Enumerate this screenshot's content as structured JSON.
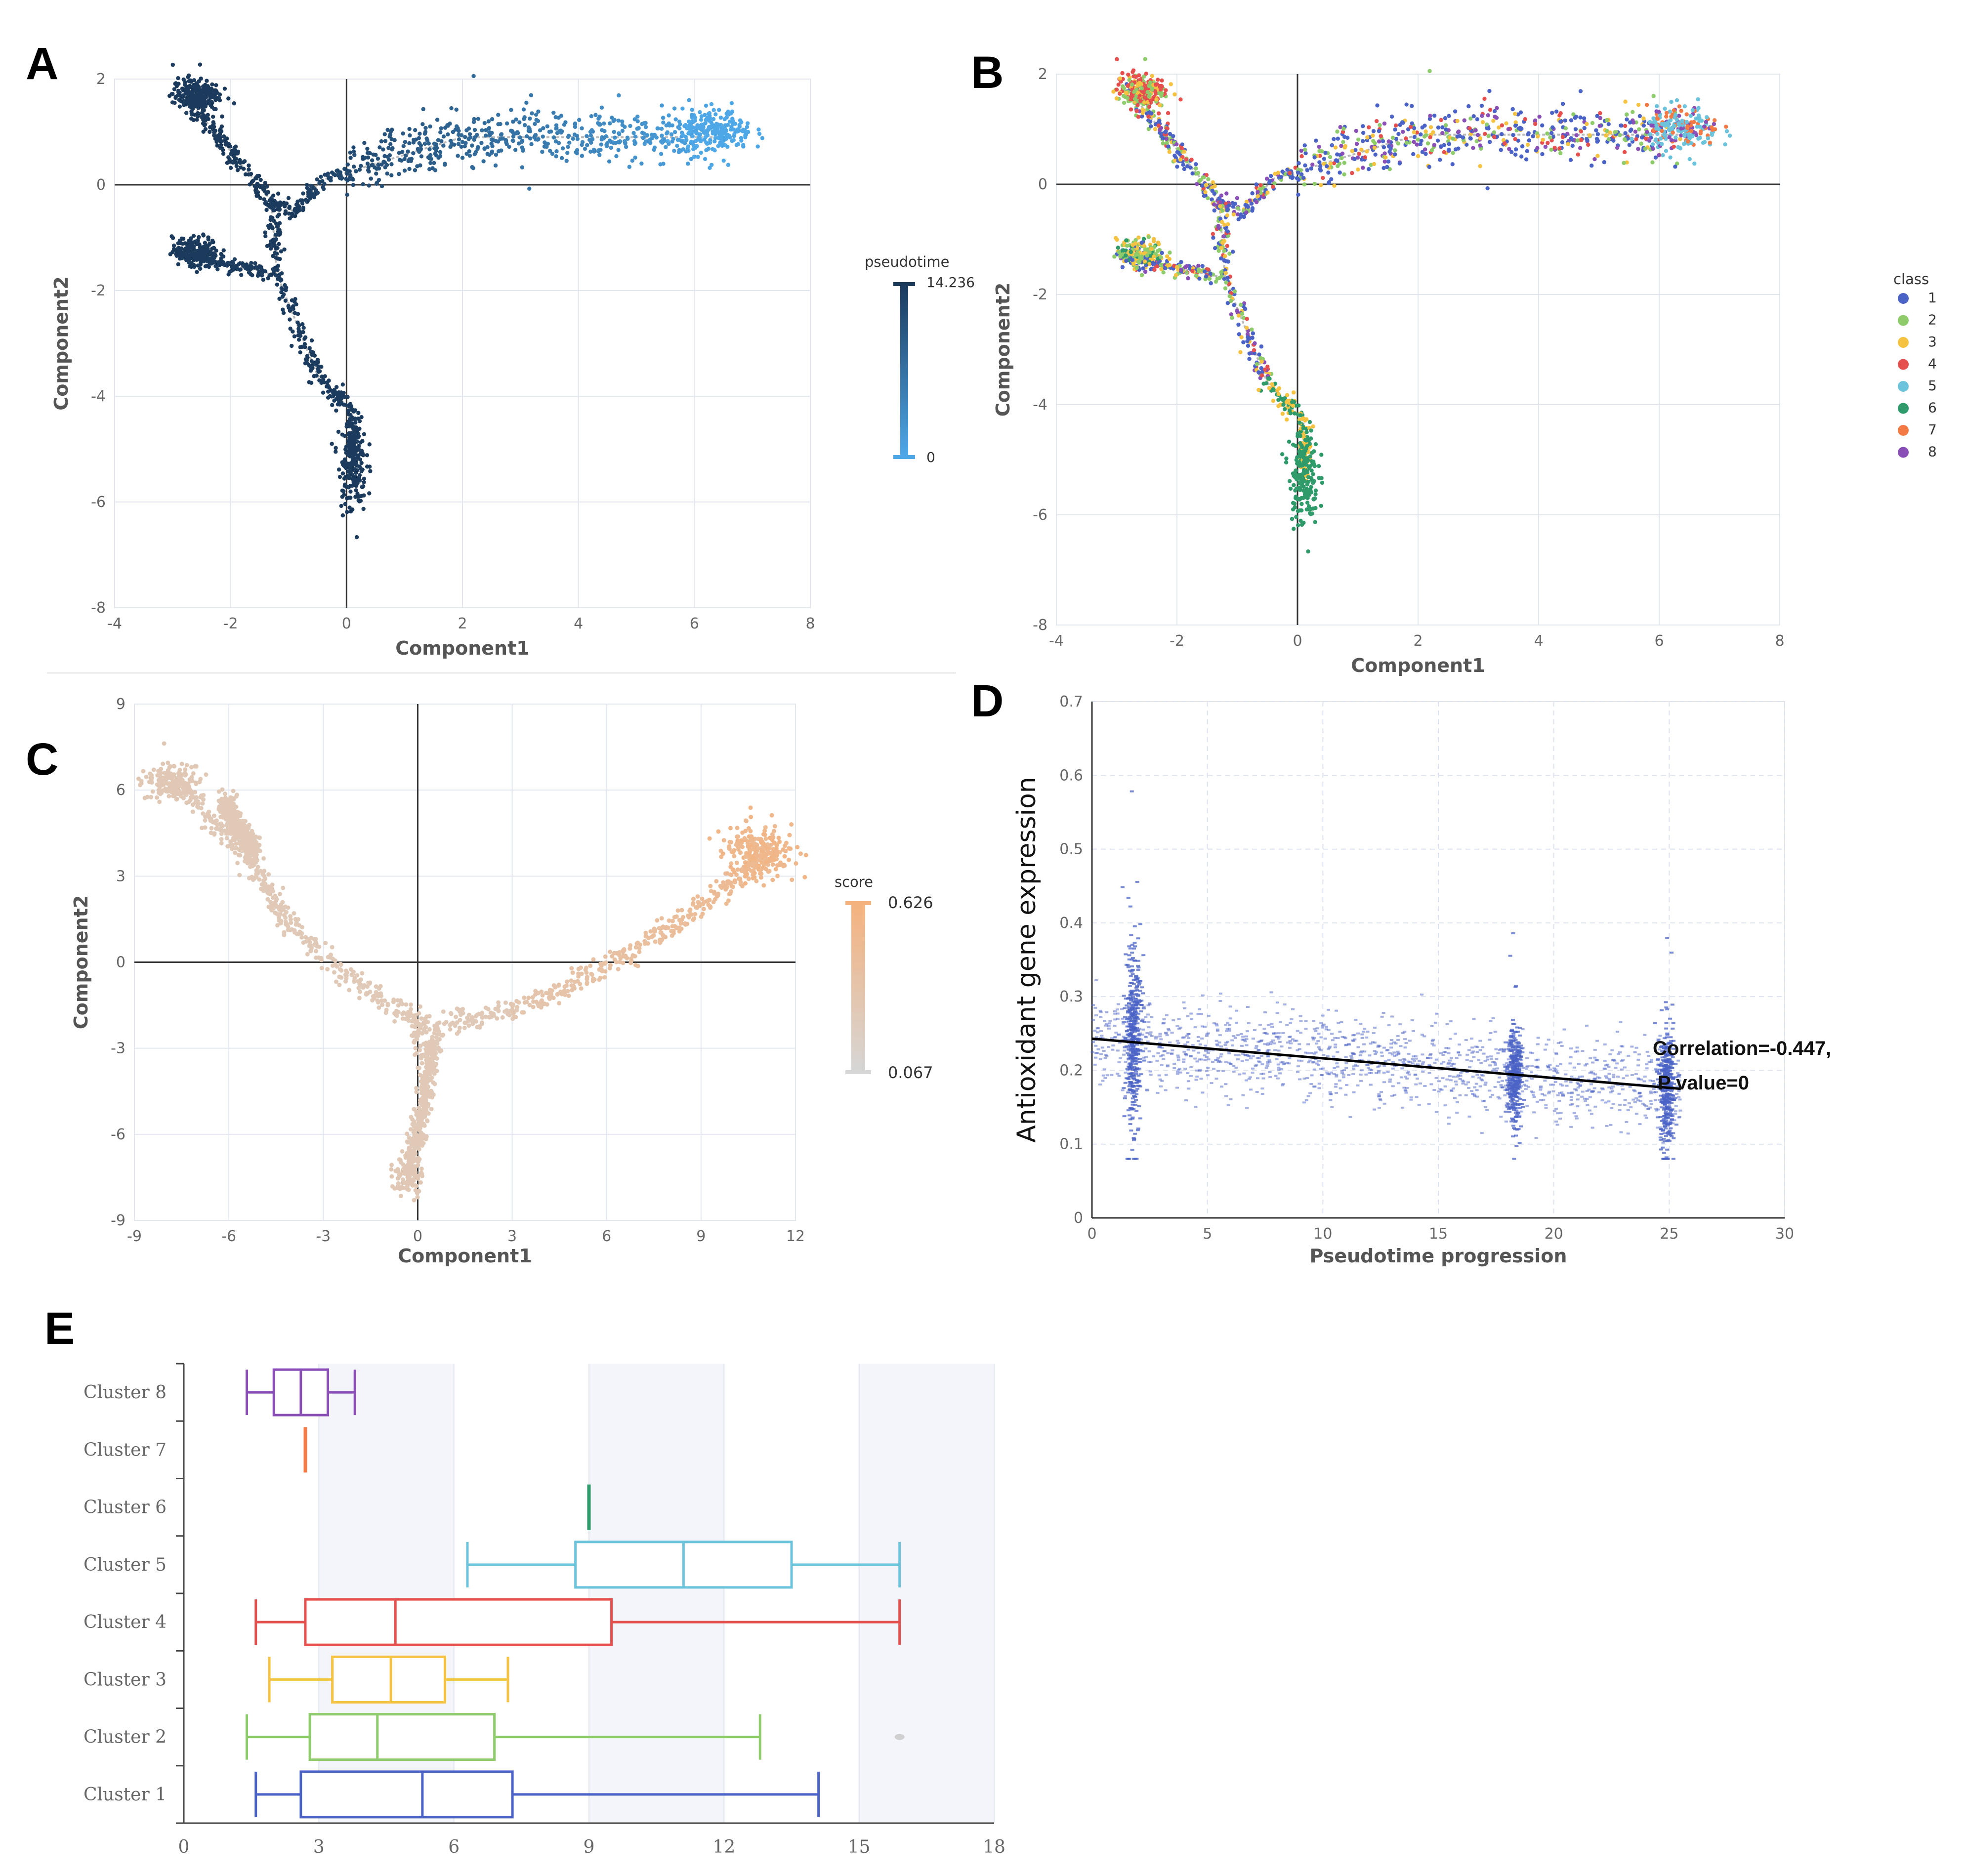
{
  "panels": {
    "A": {
      "label": "A"
    },
    "B": {
      "label": "B"
    },
    "C": {
      "label": "C"
    },
    "D": {
      "label": "D"
    },
    "E": {
      "label": "E"
    }
  },
  "chart_data": [
    {
      "id": "A",
      "type": "scatter",
      "title": "",
      "xlabel": "Component1",
      "ylabel": "Component2",
      "xlim": [
        -4,
        8
      ],
      "ylim": [
        -8,
        2
      ],
      "xticks": [
        -4,
        -2,
        0,
        2,
        4,
        6,
        8
      ],
      "yticks": [
        2,
        0,
        -2,
        -4,
        -6,
        -8
      ],
      "grid": true,
      "legend": {
        "type": "continuous",
        "title": "pseudotime",
        "max": "14.236",
        "min": "0",
        "color_max": "#1b3a5c",
        "color_min": "#4ea8e8",
        "position": "right"
      },
      "trajectory": [
        [
          -2.8,
          1.7
        ],
        [
          -1.3,
          -0.3
        ],
        [
          -0.9,
          -0.5
        ],
        [
          -0.4,
          0.1
        ],
        [
          2,
          0.9
        ],
        [
          6.5,
          0.9
        ]
      ],
      "branches": [
        {
          "path": [
            [
              -1.3,
              -0.3
            ],
            [
              -1.2,
              -1.7
            ],
            [
              -0.5,
              -3.6
            ]
          ]
        },
        {
          "path": [
            [
              -2.9,
              -1.3
            ],
            [
              -1.2,
              -1.7
            ]
          ]
        },
        {
          "path": [
            [
              -0.5,
              -3.6
            ],
            [
              0.1,
              -4.3
            ],
            [
              0.1,
              -5.3
            ]
          ]
        }
      ],
      "clusters": [
        {
          "center": [
            -2.6,
            1.7
          ],
          "spread": [
            0.2,
            0.16
          ],
          "n": 220,
          "t": 0.0
        },
        {
          "center": [
            -2.6,
            -1.25
          ],
          "spread": [
            0.2,
            0.13
          ],
          "n": 170,
          "t": 0.0
        },
        {
          "center": [
            0.1,
            -5.3
          ],
          "spread": [
            0.12,
            0.45
          ],
          "n": 160,
          "t": 0.0
        },
        {
          "center": [
            6.4,
            1.0
          ],
          "spread": [
            0.3,
            0.2
          ],
          "n": 220,
          "t": 1.0
        }
      ]
    },
    {
      "id": "B",
      "type": "scatter",
      "title": "",
      "xlabel": "Component1",
      "ylabel": "Component2",
      "xlim": [
        -4,
        8
      ],
      "ylim": [
        -8,
        2
      ],
      "xticks": [
        -4,
        -2,
        0,
        2,
        4,
        6,
        8
      ],
      "yticks": [
        2,
        0,
        -2,
        -4,
        -6,
        -8
      ],
      "grid": true,
      "legend": {
        "type": "categorical",
        "title": "class",
        "position": "right",
        "entries": [
          {
            "label": "1",
            "color": "#4b63c6"
          },
          {
            "label": "2",
            "color": "#8ecb6a"
          },
          {
            "label": "3",
            "color": "#f5c242"
          },
          {
            "label": "4",
            "color": "#e5504e"
          },
          {
            "label": "5",
            "color": "#6cc3dc"
          },
          {
            "label": "6",
            "color": "#2f9a6a"
          },
          {
            "label": "7",
            "color": "#f47a45"
          },
          {
            "label": "8",
            "color": "#8a4fb6"
          }
        ]
      }
    },
    {
      "id": "C",
      "type": "scatter",
      "title": "",
      "xlabel": "Component1",
      "ylabel": "Component2",
      "xlim": [
        -9,
        12
      ],
      "ylim": [
        -9,
        9
      ],
      "xticks": [
        -9,
        -6,
        -3,
        0,
        3,
        6,
        9,
        12
      ],
      "yticks": [
        9,
        6,
        3,
        0,
        -3,
        -6,
        -9
      ],
      "grid": true,
      "legend": {
        "type": "continuous",
        "title": "score",
        "max": "0.626",
        "min": "0.067",
        "color_max": "#f4b27e",
        "color_min": "#d6d6d6",
        "position": "right"
      },
      "arms": [
        {
          "path": [
            [
              -7.6,
              6.2
            ],
            [
              -5.5,
              3.8
            ],
            [
              -4.2,
              1.5
            ],
            [
              -2.5,
              -0.3
            ],
            [
              0,
              -2
            ],
            [
              0,
              -3.0
            ]
          ]
        },
        {
          "path": [
            [
              -6.2,
              5.6
            ],
            [
              -5.2,
              3.8
            ]
          ]
        },
        {
          "path": [
            [
              0,
              -2.2
            ],
            [
              1,
              -2.2
            ],
            [
              4,
              -1.3
            ],
            [
              7,
              0.5
            ],
            [
              9.5,
              2.4
            ],
            [
              10.8,
              3.7
            ]
          ]
        },
        {
          "path": [
            [
              0.5,
              -2.7
            ],
            [
              0.2,
              -4.8
            ],
            [
              -0.3,
              -7.5
            ]
          ]
        }
      ],
      "clusters": [
        {
          "center": [
            -7.8,
            6.3
          ],
          "spread": [
            0.45,
            0.35
          ],
          "n": 150
        },
        {
          "center": [
            10.8,
            3.9
          ],
          "spread": [
            0.55,
            0.45
          ],
          "n": 230
        },
        {
          "center": [
            -0.3,
            -7.5
          ],
          "spread": [
            0.25,
            0.3
          ],
          "n": 80
        }
      ]
    },
    {
      "id": "D",
      "type": "scatter",
      "title": "",
      "xlabel": "Pseudotime progression",
      "ylabel": "Antioxidant gene expression",
      "xlim": [
        0,
        30
      ],
      "ylim": [
        0,
        0.7
      ],
      "xticks": [
        0,
        5,
        10,
        15,
        20,
        25,
        30
      ],
      "yticks": [
        "0",
        "0.1",
        "0.2",
        "0.3",
        "0.4",
        "0.5",
        "0.6",
        "0.7"
      ],
      "grid": true,
      "point_color": "#4b63c6",
      "fit_line": {
        "x": [
          0,
          25.5
        ],
        "y": [
          0.243,
          0.175
        ]
      },
      "annotation": [
        "Correlation=-0.447,",
        "P value=0"
      ],
      "dense_columns": [
        {
          "x": 1.8,
          "width": 0.35,
          "mean": 0.25,
          "sd": 0.055,
          "n": 420
        },
        {
          "x": 18.3,
          "width": 0.3,
          "mean": 0.19,
          "sd": 0.03,
          "n": 360
        },
        {
          "x": 24.9,
          "width": 0.3,
          "mean": 0.18,
          "sd": 0.04,
          "n": 380
        }
      ],
      "background": {
        "x_from": 0,
        "x_to": 25.5,
        "mean_start": 0.243,
        "mean_end": 0.175,
        "sd": 0.028,
        "n": 1400
      }
    },
    {
      "id": "E",
      "type": "boxplot",
      "title": "",
      "xlabel": "",
      "ylabel": "",
      "xlim": [
        0,
        18
      ],
      "xticks": [
        0,
        3,
        6,
        9,
        12,
        15,
        18
      ],
      "categories": [
        "Cluster 8",
        "Cluster 7",
        "Cluster 6",
        "Cluster 5",
        "Cluster 4",
        "Cluster 3",
        "Cluster 2",
        "Cluster 1"
      ],
      "boxes": [
        {
          "label": "Cluster 8",
          "min": 1.4,
          "q1": 2.0,
          "median": 2.6,
          "q3": 3.2,
          "max": 3.8,
          "color": "#8a4fb6"
        },
        {
          "label": "Cluster 7",
          "min": 2.7,
          "q1": 2.7,
          "median": 2.7,
          "q3": 2.7,
          "max": 2.7,
          "color": "#f47a45"
        },
        {
          "label": "Cluster 6",
          "min": 9.0,
          "q1": 9.0,
          "median": 9.0,
          "q3": 9.0,
          "max": 9.0,
          "color": "#2f9a6a"
        },
        {
          "label": "Cluster 5",
          "min": 6.3,
          "q1": 8.7,
          "median": 11.1,
          "q3": 13.5,
          "max": 15.9,
          "color": "#6cc3dc"
        },
        {
          "label": "Cluster 4",
          "min": 1.6,
          "q1": 2.7,
          "median": 4.7,
          "q3": 9.5,
          "max": 15.9,
          "color": "#e5504e"
        },
        {
          "label": "Cluster 3",
          "min": 1.9,
          "q1": 3.3,
          "median": 4.6,
          "q3": 5.8,
          "max": 7.2,
          "color": "#f5c242"
        },
        {
          "label": "Cluster 2",
          "min": 1.4,
          "q1": 2.8,
          "median": 4.3,
          "q3": 6.9,
          "max": 12.8,
          "color": "#8ecb6a",
          "outliers": [
            15.9
          ]
        },
        {
          "label": "Cluster 1",
          "min": 1.6,
          "q1": 2.6,
          "median": 5.3,
          "q3": 7.3,
          "max": 14.1,
          "color": "#4b63c6"
        }
      ]
    }
  ]
}
